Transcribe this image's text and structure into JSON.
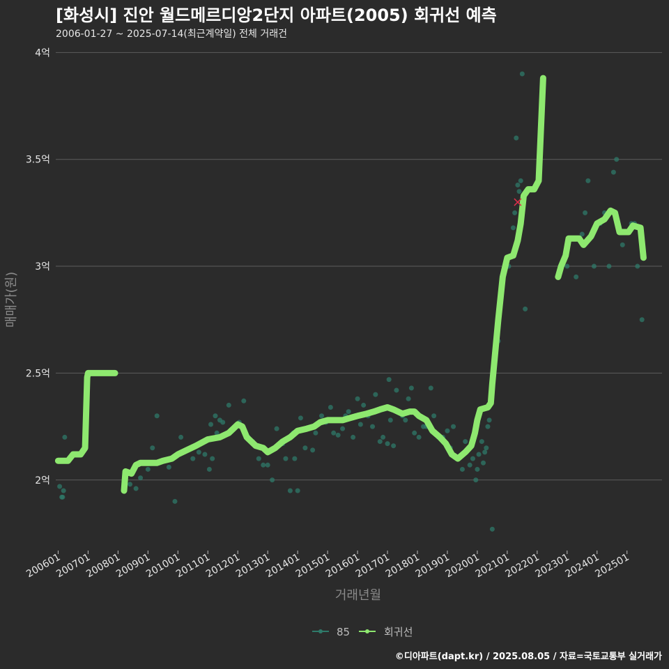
{
  "header": {
    "title": "[화성시] 진안 월드메르디앙2단지 아파트(2005) 회귀선 예측",
    "subtitle": "2006-01-27 ~ 2025-07-14(최근계약일) 전체 거래건"
  },
  "footer": {
    "credit": "©디아파트(dapt.kr) / 2025.08.05 / 자료=국토교통부 실거래가"
  },
  "colors": {
    "background": "#2b2b2b",
    "grid": "#5c5c5c",
    "regression": "#8ee86f",
    "scatter": "#2f7a6a",
    "outlier": "#e0304a"
  },
  "chart_data": {
    "type": "scatter+line",
    "title": "[화성시] 진안 월드메르디앙2단지 아파트(2005) 회귀선 예측",
    "xlabel": "거래년월",
    "ylabel": "매매가(원)",
    "xlim": [
      2005.92,
      2026.17
    ],
    "ylim": [
      1.67,
      4.05
    ],
    "y_ticks": [
      {
        "value": 2.0,
        "label": "2억"
      },
      {
        "value": 2.5,
        "label": "2.5억"
      },
      {
        "value": 3.0,
        "label": "3억"
      },
      {
        "value": 3.5,
        "label": "3.5억"
      },
      {
        "value": 4.0,
        "label": "4억"
      }
    ],
    "x_ticks": [
      {
        "value": 2006.0,
        "label": "200601"
      },
      {
        "value": 2007.0,
        "label": "200701"
      },
      {
        "value": 2008.0,
        "label": "200801"
      },
      {
        "value": 2009.0,
        "label": "200901"
      },
      {
        "value": 2010.0,
        "label": "201001"
      },
      {
        "value": 2011.0,
        "label": "201101"
      },
      {
        "value": 2012.0,
        "label": "201201"
      },
      {
        "value": 2013.0,
        "label": "201301"
      },
      {
        "value": 2014.0,
        "label": "201401"
      },
      {
        "value": 2015.0,
        "label": "201501"
      },
      {
        "value": 2016.0,
        "label": "201601"
      },
      {
        "value": 2017.0,
        "label": "201701"
      },
      {
        "value": 2018.0,
        "label": "201801"
      },
      {
        "value": 2019.0,
        "label": "201901"
      },
      {
        "value": 2020.0,
        "label": "202001"
      },
      {
        "value": 2021.0,
        "label": "202101"
      },
      {
        "value": 2022.0,
        "label": "202201"
      },
      {
        "value": 2023.0,
        "label": "202301"
      },
      {
        "value": 2024.0,
        "label": "202401"
      },
      {
        "value": 2025.0,
        "label": "202501"
      }
    ],
    "legend": [
      {
        "name": "85",
        "color": "#2f7a6a"
      },
      {
        "name": "회귀선",
        "color": "#8ee86f"
      }
    ],
    "regression_segments": [
      [
        [
          2006.0,
          2.09
        ],
        [
          2006.33,
          2.09
        ],
        [
          2006.5,
          2.12
        ],
        [
          2006.75,
          2.12
        ],
        [
          2006.9,
          2.15
        ],
        [
          2006.97,
          2.48
        ],
        [
          2007.0,
          2.5
        ],
        [
          2007.5,
          2.5
        ],
        [
          2007.9,
          2.5
        ]
      ],
      [
        [
          2008.2,
          1.95
        ],
        [
          2008.25,
          2.04
        ],
        [
          2008.45,
          2.03
        ],
        [
          2008.6,
          2.07
        ],
        [
          2008.75,
          2.08
        ],
        [
          2009.0,
          2.08
        ],
        [
          2009.3,
          2.08
        ],
        [
          2009.5,
          2.09
        ],
        [
          2009.8,
          2.1
        ],
        [
          2010.0,
          2.12
        ],
        [
          2010.3,
          2.14
        ],
        [
          2010.6,
          2.16
        ],
        [
          2011.0,
          2.19
        ],
        [
          2011.4,
          2.2
        ],
        [
          2011.7,
          2.22
        ],
        [
          2011.85,
          2.24
        ],
        [
          2012.0,
          2.26
        ],
        [
          2012.15,
          2.25
        ],
        [
          2012.3,
          2.2
        ],
        [
          2012.6,
          2.16
        ],
        [
          2012.85,
          2.15
        ],
        [
          2013.0,
          2.13
        ],
        [
          2013.25,
          2.15
        ],
        [
          2013.5,
          2.18
        ],
        [
          2013.75,
          2.2
        ],
        [
          2014.0,
          2.23
        ],
        [
          2014.3,
          2.24
        ],
        [
          2014.55,
          2.25
        ],
        [
          2014.75,
          2.27
        ],
        [
          2015.0,
          2.28
        ],
        [
          2015.5,
          2.28
        ],
        [
          2015.75,
          2.29
        ],
        [
          2016.0,
          2.3
        ],
        [
          2016.3,
          2.31
        ],
        [
          2016.55,
          2.32
        ],
        [
          2016.75,
          2.33
        ],
        [
          2017.0,
          2.34
        ],
        [
          2017.2,
          2.33
        ],
        [
          2017.5,
          2.31
        ],
        [
          2017.75,
          2.32
        ],
        [
          2017.9,
          2.32
        ],
        [
          2018.05,
          2.3
        ],
        [
          2018.3,
          2.28
        ],
        [
          2018.5,
          2.23
        ],
        [
          2018.75,
          2.2
        ],
        [
          2018.95,
          2.17
        ],
        [
          2019.15,
          2.12
        ],
        [
          2019.35,
          2.1
        ],
        [
          2019.6,
          2.13
        ],
        [
          2019.8,
          2.16
        ],
        [
          2019.92,
          2.22
        ],
        [
          2020.0,
          2.28
        ],
        [
          2020.1,
          2.33
        ],
        [
          2020.35,
          2.34
        ],
        [
          2020.45,
          2.36
        ],
        [
          2020.5,
          2.45
        ],
        [
          2020.6,
          2.6
        ],
        [
          2020.7,
          2.75
        ],
        [
          2020.85,
          2.95
        ],
        [
          2021.0,
          3.04
        ],
        [
          2021.2,
          3.05
        ],
        [
          2021.35,
          3.12
        ],
        [
          2021.45,
          3.2
        ],
        [
          2021.55,
          3.33
        ],
        [
          2021.7,
          3.36
        ],
        [
          2021.9,
          3.36
        ],
        [
          2022.05,
          3.4
        ],
        [
          2022.2,
          3.88
        ]
      ],
      [
        [
          2022.7,
          2.95
        ],
        [
          2022.8,
          3.0
        ],
        [
          2022.95,
          3.05
        ],
        [
          2023.05,
          3.13
        ],
        [
          2023.4,
          3.13
        ],
        [
          2023.55,
          3.1
        ],
        [
          2023.8,
          3.14
        ],
        [
          2024.0,
          3.2
        ],
        [
          2024.25,
          3.22
        ],
        [
          2024.45,
          3.26
        ],
        [
          2024.6,
          3.25
        ],
        [
          2024.75,
          3.16
        ],
        [
          2025.05,
          3.16
        ],
        [
          2025.2,
          3.19
        ],
        [
          2025.45,
          3.18
        ],
        [
          2025.55,
          3.04
        ]
      ]
    ],
    "points_85": [
      [
        2006.05,
        1.97
      ],
      [
        2006.12,
        1.92
      ],
      [
        2006.15,
        1.92
      ],
      [
        2006.18,
        1.95
      ],
      [
        2006.22,
        2.2
      ],
      [
        2008.25,
        2.0
      ],
      [
        2008.4,
        1.98
      ],
      [
        2008.6,
        1.96
      ],
      [
        2008.75,
        2.01
      ],
      [
        2009.0,
        2.05
      ],
      [
        2009.15,
        2.15
      ],
      [
        2009.3,
        2.3
      ],
      [
        2009.5,
        2.09
      ],
      [
        2009.7,
        2.06
      ],
      [
        2009.9,
        1.9
      ],
      [
        2010.1,
        2.2
      ],
      [
        2010.25,
        2.14
      ],
      [
        2010.5,
        2.1
      ],
      [
        2010.7,
        2.13
      ],
      [
        2010.9,
        2.12
      ],
      [
        2011.05,
        2.05
      ],
      [
        2011.1,
        2.26
      ],
      [
        2011.15,
        2.1
      ],
      [
        2011.25,
        2.3
      ],
      [
        2011.3,
        2.22
      ],
      [
        2011.4,
        2.28
      ],
      [
        2011.5,
        2.27
      ],
      [
        2011.7,
        2.35
      ],
      [
        2011.9,
        2.25
      ],
      [
        2012.05,
        2.27
      ],
      [
        2012.2,
        2.37
      ],
      [
        2012.35,
        2.2
      ],
      [
        2012.5,
        2.18
      ],
      [
        2012.7,
        2.1
      ],
      [
        2012.85,
        2.07
      ],
      [
        2013.0,
        2.07
      ],
      [
        2013.15,
        2.0
      ],
      [
        2013.3,
        2.24
      ],
      [
        2013.5,
        2.17
      ],
      [
        2013.6,
        2.1
      ],
      [
        2013.75,
        1.95
      ],
      [
        2013.85,
        2.22
      ],
      [
        2013.9,
        2.1
      ],
      [
        2014.0,
        1.95
      ],
      [
        2014.1,
        2.29
      ],
      [
        2014.25,
        2.15
      ],
      [
        2014.5,
        2.14
      ],
      [
        2014.6,
        2.22
      ],
      [
        2014.8,
        2.3
      ],
      [
        2014.95,
        2.27
      ],
      [
        2015.1,
        2.34
      ],
      [
        2015.2,
        2.22
      ],
      [
        2015.35,
        2.21
      ],
      [
        2015.5,
        2.24
      ],
      [
        2015.6,
        2.3
      ],
      [
        2015.7,
        2.32
      ],
      [
        2015.85,
        2.2
      ],
      [
        2016.0,
        2.38
      ],
      [
        2016.1,
        2.26
      ],
      [
        2016.2,
        2.35
      ],
      [
        2016.35,
        2.3
      ],
      [
        2016.5,
        2.25
      ],
      [
        2016.6,
        2.4
      ],
      [
        2016.75,
        2.18
      ],
      [
        2016.85,
        2.2
      ],
      [
        2017.0,
        2.17
      ],
      [
        2017.05,
        2.47
      ],
      [
        2017.1,
        2.28
      ],
      [
        2017.2,
        2.16
      ],
      [
        2017.3,
        2.42
      ],
      [
        2017.5,
        2.3
      ],
      [
        2017.6,
        2.28
      ],
      [
        2017.7,
        2.38
      ],
      [
        2017.8,
        2.43
      ],
      [
        2017.9,
        2.22
      ],
      [
        2018.05,
        2.2
      ],
      [
        2018.2,
        2.25
      ],
      [
        2018.3,
        2.25
      ],
      [
        2018.45,
        2.43
      ],
      [
        2018.55,
        2.3
      ],
      [
        2018.7,
        2.2
      ],
      [
        2018.85,
        2.2
      ],
      [
        2019.0,
        2.23
      ],
      [
        2019.1,
        2.15
      ],
      [
        2019.2,
        2.25
      ],
      [
        2019.35,
        2.1
      ],
      [
        2019.5,
        2.05
      ],
      [
        2019.6,
        2.18
      ],
      [
        2019.75,
        2.07
      ],
      [
        2019.85,
        2.1
      ],
      [
        2019.95,
        2.0
      ],
      [
        2020.0,
        2.05
      ],
      [
        2020.05,
        2.12
      ],
      [
        2020.15,
        2.18
      ],
      [
        2020.2,
        2.08
      ],
      [
        2020.25,
        2.13
      ],
      [
        2020.3,
        2.15
      ],
      [
        2020.35,
        2.25
      ],
      [
        2020.4,
        2.28
      ],
      [
        2020.5,
        1.77
      ],
      [
        2020.6,
        2.56
      ],
      [
        2020.7,
        2.65
      ],
      [
        2020.8,
        2.9
      ],
      [
        2020.9,
        2.97
      ],
      [
        2021.05,
        3.0
      ],
      [
        2021.2,
        3.18
      ],
      [
        2021.25,
        3.25
      ],
      [
        2021.3,
        3.6
      ],
      [
        2021.35,
        3.38
      ],
      [
        2021.4,
        3.35
      ],
      [
        2021.45,
        3.4
      ],
      [
        2021.5,
        3.9
      ],
      [
        2021.55,
        3.3
      ],
      [
        2021.6,
        2.8
      ],
      [
        2023.0,
        3.0
      ],
      [
        2023.3,
        2.95
      ],
      [
        2023.5,
        3.15
      ],
      [
        2023.6,
        3.25
      ],
      [
        2023.7,
        3.4
      ],
      [
        2023.9,
        3.0
      ],
      [
        2024.1,
        3.2
      ],
      [
        2024.25,
        3.25
      ],
      [
        2024.4,
        3.0
      ],
      [
        2024.55,
        3.44
      ],
      [
        2024.65,
        3.5
      ],
      [
        2024.85,
        3.1
      ],
      [
        2025.15,
        3.2
      ],
      [
        2025.25,
        3.2
      ],
      [
        2025.35,
        3.0
      ],
      [
        2025.5,
        2.75
      ]
    ],
    "outliers": [
      [
        2021.35,
        3.3
      ]
    ]
  }
}
